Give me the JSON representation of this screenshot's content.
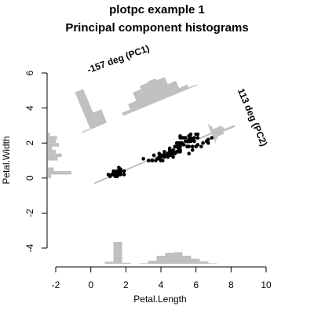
{
  "chart_data": {
    "type": "scatter",
    "title": "plotpc example 1",
    "subtitle": "Principal component histograms",
    "xlabel": "Petal.Length",
    "ylabel": "Petal.Width",
    "xlim": [
      -2,
      10
    ],
    "ylim": [
      -4.6,
      6.6
    ],
    "xticks": [
      -2,
      0,
      2,
      4,
      6,
      8,
      10
    ],
    "yticks": [
      -4,
      -2,
      0,
      2,
      4,
      6
    ],
    "grid": false,
    "colors": {
      "points": "#000000",
      "histograms": "#c0c0c0",
      "axes": "#000000"
    },
    "pc_labels": [
      "-157 deg (PC1)",
      "113 deg (PC2)"
    ],
    "points": [
      [
        1.4,
        0.2
      ],
      [
        1.4,
        0.2
      ],
      [
        1.3,
        0.2
      ],
      [
        1.5,
        0.2
      ],
      [
        1.4,
        0.2
      ],
      [
        1.7,
        0.4
      ],
      [
        1.4,
        0.3
      ],
      [
        1.5,
        0.2
      ],
      [
        1.4,
        0.2
      ],
      [
        1.5,
        0.1
      ],
      [
        1.5,
        0.2
      ],
      [
        1.6,
        0.2
      ],
      [
        1.4,
        0.1
      ],
      [
        1.1,
        0.1
      ],
      [
        1.2,
        0.2
      ],
      [
        1.5,
        0.4
      ],
      [
        1.3,
        0.4
      ],
      [
        1.4,
        0.3
      ],
      [
        1.7,
        0.3
      ],
      [
        1.5,
        0.3
      ],
      [
        1.7,
        0.2
      ],
      [
        1.5,
        0.4
      ],
      [
        1.0,
        0.2
      ],
      [
        1.7,
        0.5
      ],
      [
        1.9,
        0.2
      ],
      [
        1.6,
        0.2
      ],
      [
        1.6,
        0.4
      ],
      [
        1.5,
        0.2
      ],
      [
        1.4,
        0.2
      ],
      [
        1.6,
        0.2
      ],
      [
        1.6,
        0.2
      ],
      [
        1.5,
        0.4
      ],
      [
        1.5,
        0.1
      ],
      [
        1.4,
        0.2
      ],
      [
        1.5,
        0.2
      ],
      [
        1.2,
        0.2
      ],
      [
        1.3,
        0.2
      ],
      [
        1.4,
        0.1
      ],
      [
        1.3,
        0.2
      ],
      [
        1.5,
        0.2
      ],
      [
        1.3,
        0.3
      ],
      [
        1.3,
        0.3
      ],
      [
        1.3,
        0.2
      ],
      [
        1.6,
        0.6
      ],
      [
        1.9,
        0.4
      ],
      [
        1.4,
        0.3
      ],
      [
        1.6,
        0.2
      ],
      [
        1.4,
        0.2
      ],
      [
        1.5,
        0.2
      ],
      [
        1.4,
        0.2
      ],
      [
        4.7,
        1.4
      ],
      [
        4.5,
        1.5
      ],
      [
        4.9,
        1.5
      ],
      [
        4.0,
        1.3
      ],
      [
        4.6,
        1.5
      ],
      [
        4.5,
        1.3
      ],
      [
        4.7,
        1.6
      ],
      [
        3.3,
        1.0
      ],
      [
        4.6,
        1.3
      ],
      [
        3.9,
        1.4
      ],
      [
        3.5,
        1.0
      ],
      [
        4.2,
        1.5
      ],
      [
        4.0,
        1.0
      ],
      [
        4.7,
        1.4
      ],
      [
        3.6,
        1.3
      ],
      [
        4.4,
        1.4
      ],
      [
        4.5,
        1.5
      ],
      [
        4.1,
        1.0
      ],
      [
        4.5,
        1.5
      ],
      [
        3.9,
        1.1
      ],
      [
        4.8,
        1.8
      ],
      [
        4.0,
        1.3
      ],
      [
        4.9,
        1.5
      ],
      [
        4.7,
        1.2
      ],
      [
        4.3,
        1.3
      ],
      [
        4.4,
        1.4
      ],
      [
        4.8,
        1.4
      ],
      [
        5.0,
        1.7
      ],
      [
        4.5,
        1.5
      ],
      [
        3.5,
        1.0
      ],
      [
        3.8,
        1.1
      ],
      [
        3.7,
        1.0
      ],
      [
        3.9,
        1.2
      ],
      [
        5.1,
        1.6
      ],
      [
        4.5,
        1.5
      ],
      [
        4.5,
        1.6
      ],
      [
        4.7,
        1.5
      ],
      [
        4.4,
        1.3
      ],
      [
        4.1,
        1.3
      ],
      [
        4.0,
        1.3
      ],
      [
        4.4,
        1.2
      ],
      [
        4.6,
        1.4
      ],
      [
        4.0,
        1.2
      ],
      [
        3.3,
        1.0
      ],
      [
        4.2,
        1.3
      ],
      [
        4.2,
        1.2
      ],
      [
        4.2,
        1.3
      ],
      [
        4.3,
        1.3
      ],
      [
        3.0,
        1.1
      ],
      [
        4.1,
        1.3
      ],
      [
        6.0,
        2.5
      ],
      [
        5.1,
        1.9
      ],
      [
        5.9,
        2.1
      ],
      [
        5.6,
        1.8
      ],
      [
        5.8,
        2.2
      ],
      [
        6.6,
        2.1
      ],
      [
        4.5,
        1.7
      ],
      [
        6.3,
        1.8
      ],
      [
        5.8,
        1.8
      ],
      [
        6.1,
        2.5
      ],
      [
        5.1,
        2.0
      ],
      [
        5.3,
        1.9
      ],
      [
        5.5,
        2.1
      ],
      [
        5.0,
        2.0
      ],
      [
        5.1,
        2.4
      ],
      [
        5.3,
        2.3
      ],
      [
        5.5,
        1.8
      ],
      [
        6.7,
        2.2
      ],
      [
        6.9,
        2.3
      ],
      [
        5.0,
        1.5
      ],
      [
        5.7,
        2.3
      ],
      [
        4.9,
        2.0
      ],
      [
        6.7,
        2.0
      ],
      [
        4.9,
        1.8
      ],
      [
        5.7,
        2.1
      ],
      [
        6.0,
        1.8
      ],
      [
        4.8,
        1.8
      ],
      [
        4.9,
        1.8
      ],
      [
        5.6,
        2.1
      ],
      [
        5.8,
        1.6
      ],
      [
        6.1,
        1.9
      ],
      [
        6.4,
        2.0
      ],
      [
        5.6,
        2.2
      ],
      [
        5.1,
        1.5
      ],
      [
        5.6,
        1.4
      ],
      [
        6.1,
        2.3
      ],
      [
        5.6,
        2.4
      ],
      [
        5.5,
        1.8
      ],
      [
        4.8,
        1.8
      ],
      [
        5.4,
        2.1
      ],
      [
        5.6,
        2.4
      ],
      [
        5.1,
        2.3
      ],
      [
        5.1,
        1.9
      ],
      [
        5.9,
        2.3
      ],
      [
        5.7,
        2.5
      ],
      [
        5.2,
        2.3
      ],
      [
        5.0,
        1.9
      ],
      [
        5.2,
        2.0
      ],
      [
        5.4,
        2.3
      ],
      [
        5.1,
        1.8
      ]
    ],
    "pc1_line": {
      "from": [
        0.2,
        -0.3
      ],
      "to": [
        7.0,
        2.6
      ]
    },
    "pc2_line": {
      "from": [
        6.8,
        2.55
      ],
      "to": [
        7.7,
        2.75
      ]
    }
  }
}
